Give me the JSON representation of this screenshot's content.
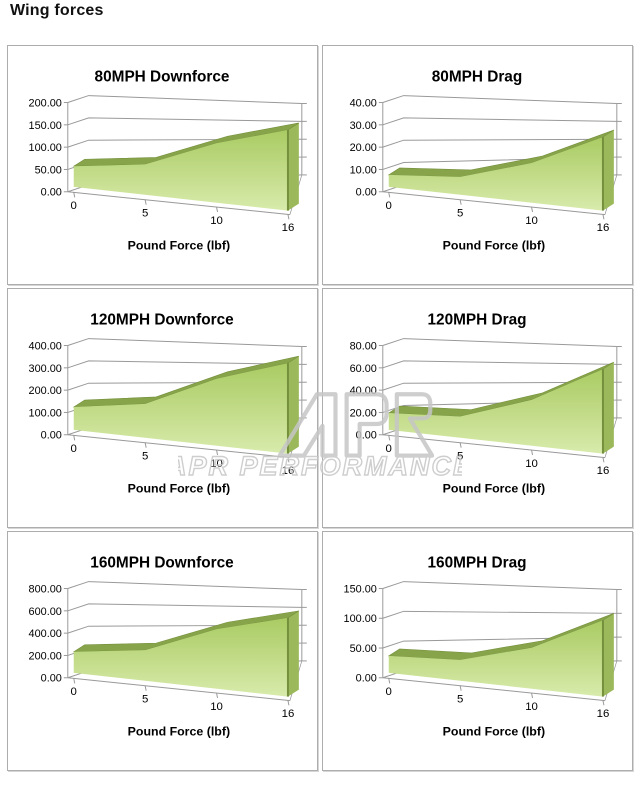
{
  "page": {
    "title": "Wing forces"
  },
  "watermark": {
    "text": "APR PERFORMANCE",
    "logo_icon": "apr-logo",
    "color": "#c6c6c6"
  },
  "colors": {
    "area_gradient_top": "#a9cb63",
    "area_gradient_mid": "#c3dc8a",
    "area_gradient_bottom": "#d8ebac",
    "area_ridge": "#87a44a",
    "area_ridge_edge": "#74903c",
    "area_side_face": "#9bb95b",
    "grid_line": "#999999",
    "text": "#000000",
    "panel_border": "#adadad"
  },
  "chart_data": [
    {
      "type": "area",
      "style": "3d-area",
      "title": "80MPH Downforce",
      "xlabel": "Pound Force (lbf)",
      "ylabel": "",
      "x": [
        0,
        5,
        10,
        16
      ],
      "xtick_labels": [
        "0",
        "5",
        "10",
        "16"
      ],
      "values": [
        52,
        68,
        120,
        148
      ],
      "ylim": [
        0,
        200
      ],
      "ytick_step": 50,
      "ytick_labels": [
        "0.00",
        "50.00",
        "100.00",
        "150.00",
        "200.00"
      ],
      "grid": true,
      "legend": "none"
    },
    {
      "type": "area",
      "style": "3d-area",
      "title": "80MPH Drag",
      "xlabel": "Pound Force (lbf)",
      "ylabel": "",
      "x": [
        0,
        5,
        10,
        16
      ],
      "xtick_labels": [
        "0",
        "5",
        "10",
        "16"
      ],
      "values": [
        6,
        8,
        16,
        27
      ],
      "ylim": [
        0,
        40
      ],
      "ytick_step": 10,
      "ytick_labels": [
        "0.00",
        "10.00",
        "20.00",
        "30.00",
        "40.00"
      ],
      "grid": true,
      "legend": "none"
    },
    {
      "type": "area",
      "style": "3d-area",
      "title": "120MPH Downforce",
      "xlabel": "Pound Force (lbf)",
      "ylabel": "",
      "x": [
        0,
        5,
        10,
        16
      ],
      "xtick_labels": [
        "0",
        "5",
        "10",
        "16"
      ],
      "values": [
        115,
        152,
        270,
        332
      ],
      "ylim": [
        0,
        400
      ],
      "ytick_step": 100,
      "ytick_labels": [
        "0.00",
        "100.00",
        "200.00",
        "300.00",
        "400.00"
      ],
      "grid": true,
      "legend": "none"
    },
    {
      "type": "area",
      "style": "3d-area",
      "title": "120MPH Drag",
      "xlabel": "Pound Force (lbf)",
      "ylabel": "",
      "x": [
        0,
        5,
        10,
        16
      ],
      "xtick_labels": [
        "0",
        "5",
        "10",
        "16"
      ],
      "values": [
        17,
        19,
        37,
        62
      ],
      "ylim": [
        0,
        80
      ],
      "ytick_step": 20,
      "ytick_labels": [
        "0.00",
        "20.00",
        "40.00",
        "60.00",
        "80.00"
      ],
      "grid": true,
      "legend": "none"
    },
    {
      "type": "area",
      "style": "3d-area",
      "title": "160MPH Downforce",
      "xlabel": "Pound Force (lbf)",
      "ylabel": "",
      "x": [
        0,
        5,
        10,
        16
      ],
      "xtick_labels": [
        "0",
        "5",
        "10",
        "16"
      ],
      "values": [
        212,
        275,
        480,
        578
      ],
      "ylim": [
        0,
        800
      ],
      "ytick_step": 200,
      "ytick_labels": [
        "0.00",
        "200.00",
        "400.00",
        "600.00",
        "800.00"
      ],
      "grid": true,
      "legend": "none"
    },
    {
      "type": "area",
      "style": "3d-area",
      "title": "160MPH Drag",
      "xlabel": "Pound Force (lbf)",
      "ylabel": "",
      "x": [
        0,
        5,
        10,
        16
      ],
      "xtick_labels": [
        "0",
        "5",
        "10",
        "16"
      ],
      "values": [
        32,
        35,
        62,
        105
      ],
      "ylim": [
        0,
        150
      ],
      "ytick_step": 50,
      "ytick_labels": [
        "0.00",
        "50.00",
        "100.00",
        "150.00"
      ],
      "grid": true,
      "legend": "none"
    }
  ]
}
